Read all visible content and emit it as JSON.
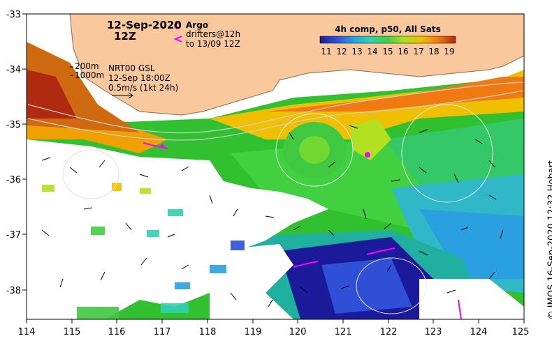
{
  "title": {
    "date": "12-Sep-2020",
    "time": "12Z"
  },
  "legend": {
    "argo_label": "Argo",
    "drifters_line1": "drifters@12h",
    "drifters_line2": "to 13/09 12Z",
    "colorbar_title": "4h comp, p50, All Sats",
    "colorbar_ticks": [
      "11",
      "12",
      "13",
      "14",
      "15",
      "16",
      "17",
      "18",
      "19"
    ],
    "contour_200": "200m",
    "contour_1000": "1000m",
    "current_source": "NRT00 GSL",
    "current_time": "12-Sep 18:00Z",
    "current_scale": "0.5m/s (1kt 24h)"
  },
  "axes": {
    "x_ticks": [
      "114",
      "115",
      "116",
      "117",
      "118",
      "119",
      "120",
      "121",
      "122",
      "123",
      "124",
      "125"
    ],
    "y_ticks": [
      "-33",
      "-34",
      "-35",
      "-36",
      "-37",
      "-38"
    ]
  },
  "credit": "© IMOS 16-Sep-2020 12:32 Hobart",
  "colors": {
    "land": "#f9c89c",
    "argo": "#ff00ff",
    "colormap": [
      "#1a1a9a",
      "#2e4fd6",
      "#2aa0e0",
      "#30d0b0",
      "#40d040",
      "#b0e020",
      "#f0c000",
      "#f07a10",
      "#b02a10"
    ]
  }
}
